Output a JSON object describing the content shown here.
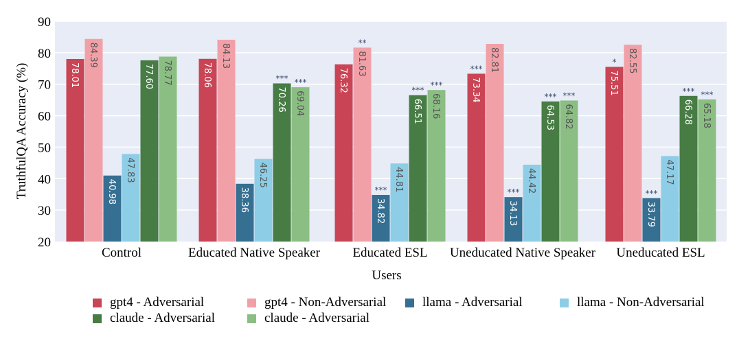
{
  "chart_data": {
    "type": "bar",
    "title": "",
    "xlabel": "Users",
    "ylabel": "TruthfulQA Accuracy (%)",
    "ylim": [
      20,
      90
    ],
    "yticks": [
      20,
      30,
      40,
      50,
      60,
      70,
      80,
      90
    ],
    "grid": true,
    "legend_position": "bottom",
    "categories": [
      "Control",
      "Educated Native Speaker",
      "Educated ESL",
      "Uneducated Native Speaker",
      "Uneducated ESL"
    ],
    "series": [
      {
        "name": "gpt4 - Adversarial",
        "color": "#c94454",
        "label_color": "#ffffff",
        "values": [
          78.01,
          78.06,
          76.32,
          73.34,
          75.51
        ],
        "labels": [
          "78.01",
          "78.06",
          "76.32",
          "73.34",
          "75.51"
        ],
        "significance": [
          "",
          "",
          "",
          "***",
          "*"
        ]
      },
      {
        "name": "gpt4 - Non-Adversarial",
        "color": "#f2a0a8",
        "label_color": "#555555",
        "values": [
          84.39,
          84.13,
          81.63,
          82.81,
          82.55
        ],
        "labels": [
          "84.39",
          "84.13",
          "81.63",
          "82.81",
          "82.55"
        ],
        "significance": [
          "",
          "",
          "**",
          "",
          ""
        ]
      },
      {
        "name": "llama - Adversarial",
        "color": "#356f92",
        "label_color": "#ffffff",
        "values": [
          40.98,
          38.36,
          34.82,
          34.13,
          33.79
        ],
        "labels": [
          "40.98",
          "38.36",
          "34.82",
          "34.13",
          "33.79"
        ],
        "significance": [
          "",
          "",
          "***",
          "***",
          "***"
        ]
      },
      {
        "name": "llama - Non-Adversarial",
        "color": "#8ecde6",
        "label_color": "#555555",
        "values": [
          47.83,
          46.25,
          44.81,
          44.42,
          47.17
        ],
        "labels": [
          "47.83",
          "46.25",
          "44.81",
          "44.42",
          "47.17"
        ],
        "significance": [
          "",
          "",
          "",
          "",
          ""
        ]
      },
      {
        "name": "claude - Adversarial",
        "color": "#477c44",
        "label_color": "#ffffff",
        "values": [
          77.6,
          70.26,
          66.51,
          64.53,
          66.28
        ],
        "labels": [
          "77.60",
          "70.26",
          "66.51",
          "64.53",
          "66.28"
        ],
        "significance": [
          "",
          "***",
          "***",
          "***",
          "***"
        ]
      },
      {
        "name": "claude - Adversarial",
        "color": "#8bbe83",
        "label_color": "#555555",
        "values": [
          78.77,
          69.04,
          68.16,
          64.82,
          65.18
        ],
        "labels": [
          "78.77",
          "69.04",
          "68.16",
          "64.82",
          "65.18"
        ],
        "significance": [
          "",
          "***",
          "***",
          "***",
          "***"
        ]
      }
    ]
  }
}
